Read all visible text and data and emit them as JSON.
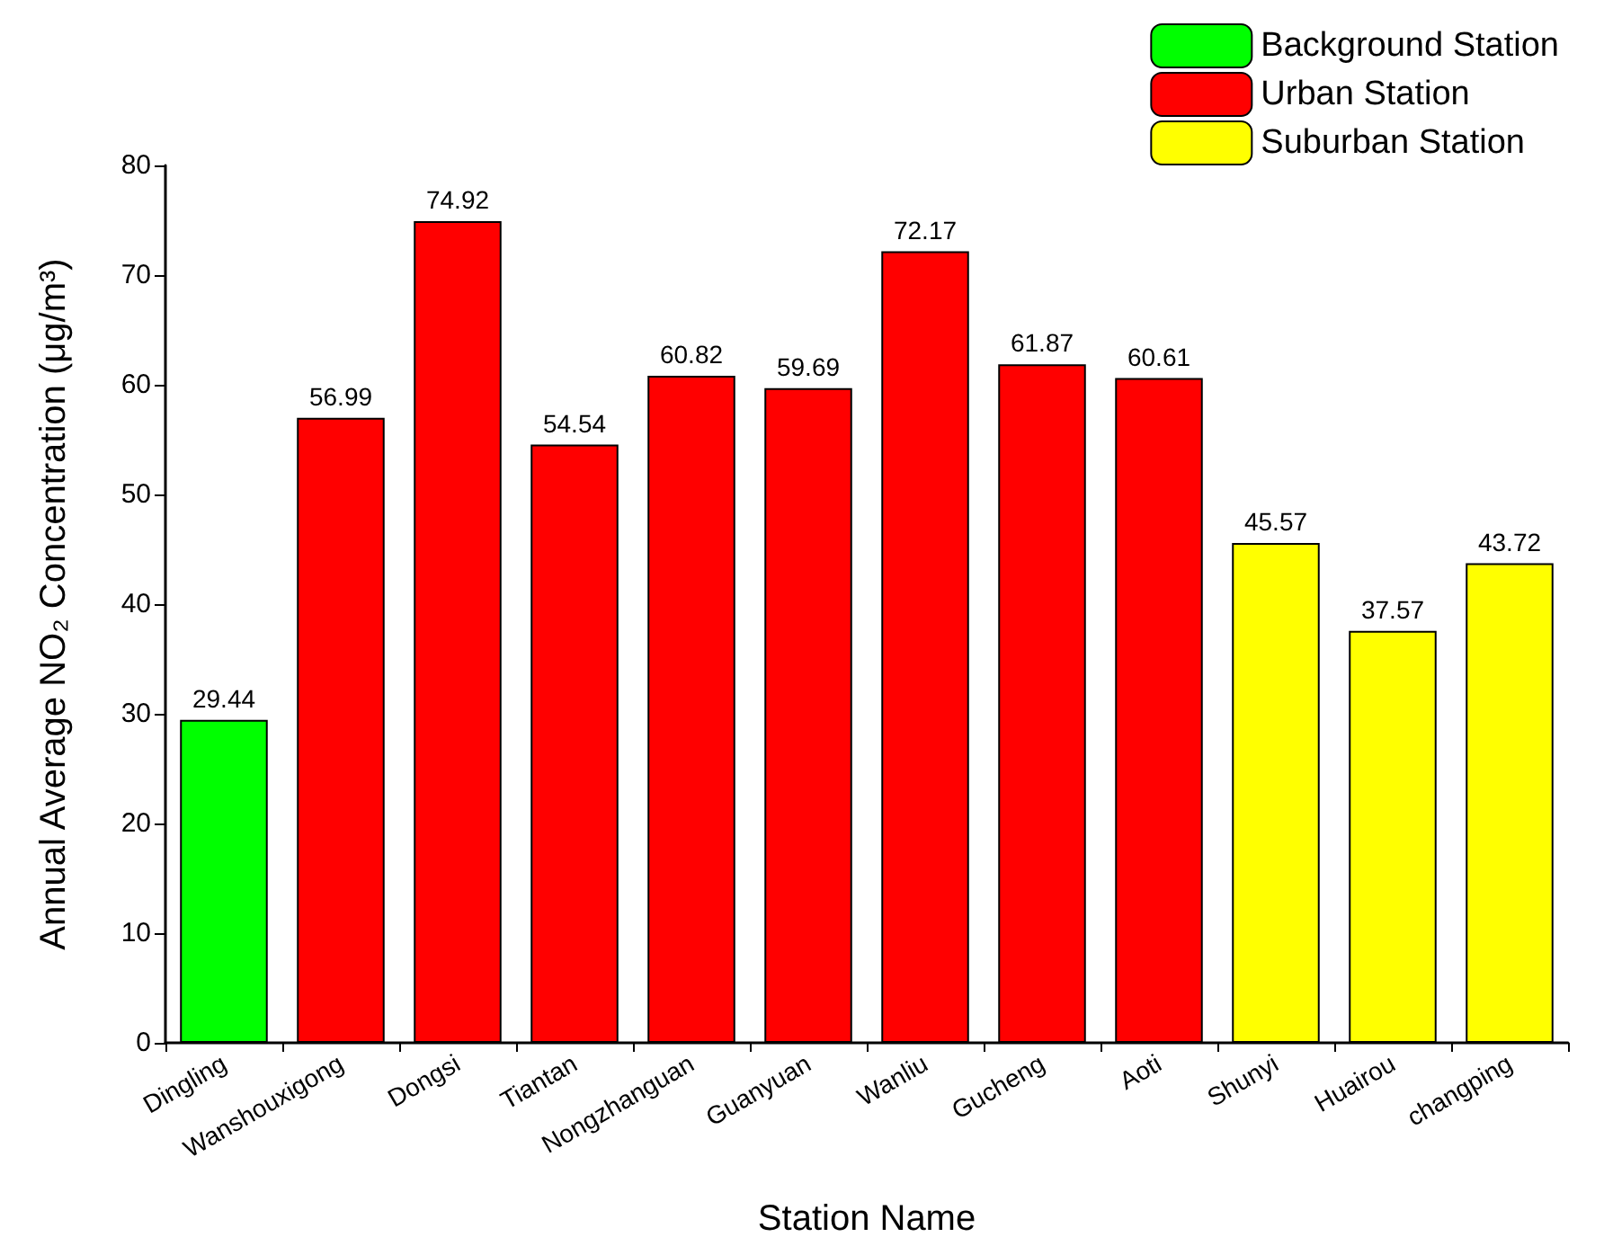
{
  "chart_data": {
    "type": "bar",
    "xlabel": "Station Name",
    "ylabel": "Annual Average NO₂ Concentration (μg/m³)",
    "categories": [
      "Dingling",
      "Wanshouxigong",
      "Dongsi",
      "Tiantan",
      "Nongzhanguan",
      "Guanyuan",
      "Wanliu",
      "Gucheng",
      "Aoti",
      "Shunyi",
      "Huairou",
      "changping"
    ],
    "series": [
      {
        "name": "Background Station",
        "color": "#00ff00",
        "values": [
          29.44,
          null,
          null,
          null,
          null,
          null,
          null,
          null,
          null,
          null,
          null,
          null
        ]
      },
      {
        "name": "Urban Station",
        "color": "#ff0000",
        "values": [
          null,
          56.99,
          74.92,
          54.54,
          60.82,
          59.69,
          72.17,
          61.87,
          60.61,
          null,
          null,
          null
        ]
      },
      {
        "name": "Suburban Station",
        "color": "#ffff00",
        "values": [
          null,
          null,
          null,
          null,
          null,
          null,
          null,
          null,
          null,
          45.57,
          37.57,
          43.72
        ]
      }
    ],
    "ylim": [
      0,
      80
    ],
    "yticks": [
      0,
      10,
      20,
      30,
      40,
      50,
      60,
      70,
      80
    ],
    "data_labels": true,
    "grid": false,
    "legend": "top right"
  }
}
